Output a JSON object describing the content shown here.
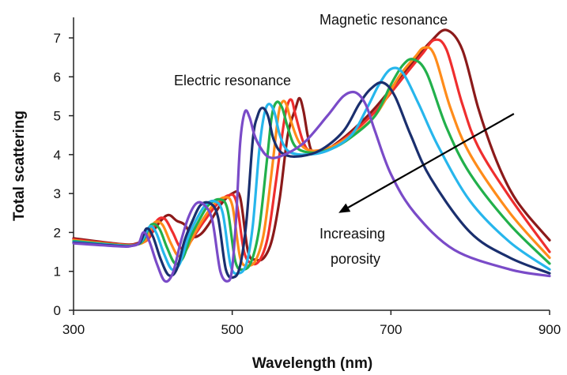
{
  "chart_data": {
    "type": "line",
    "title": "",
    "xlabel": "Wavelength (nm)",
    "ylabel": "Total scattering",
    "xlim": [
      300,
      900
    ],
    "ylim": [
      0,
      7.3
    ],
    "xticks": [
      300,
      500,
      700,
      900
    ],
    "yticks": [
      0,
      1,
      2,
      3,
      4,
      5,
      6,
      7
    ],
    "grid": false,
    "legend": "none",
    "annotations": [
      {
        "text": "Magnetic resonance"
      },
      {
        "text": "Electric resonance"
      },
      {
        "text": "Increasing"
      },
      {
        "text": "porosity"
      }
    ],
    "arrow": {
      "from": [
        855,
        5.05
      ],
      "to": [
        634,
        2.5
      ]
    },
    "series": [
      {
        "color": "#8b1a1a",
        "x": [
          300,
          360,
          380,
          395,
          410,
          420,
          430,
          440,
          450,
          460,
          470,
          485,
          500,
          510,
          520,
          530,
          540,
          550,
          560,
          570,
          580,
          585,
          590,
          595,
          600,
          610,
          625,
          650,
          680,
          720,
          750,
          770,
          790,
          810,
          830,
          850,
          870,
          900
        ],
        "y": [
          1.85,
          1.7,
          1.72,
          1.9,
          2.3,
          2.45,
          2.3,
          2.2,
          1.9,
          1.95,
          2.2,
          2.7,
          3.0,
          2.9,
          1.5,
          1.3,
          1.35,
          1.8,
          2.9,
          4.5,
          5.2,
          5.45,
          5.1,
          4.5,
          4.1,
          4.05,
          4.2,
          4.6,
          5.2,
          6.2,
          6.9,
          7.2,
          6.7,
          5.2,
          4.0,
          3.1,
          2.5,
          1.8
        ]
      },
      {
        "color": "#ef2e2e",
        "x": [
          300,
          360,
          380,
          395,
          405,
          415,
          425,
          435,
          445,
          455,
          465,
          480,
          495,
          505,
          515,
          525,
          535,
          545,
          555,
          565,
          570,
          575,
          580,
          590,
          600,
          625,
          650,
          680,
          720,
          740,
          755,
          770,
          790,
          810,
          850,
          900
        ],
        "y": [
          1.82,
          1.69,
          1.7,
          1.85,
          2.3,
          2.35,
          2.0,
          1.6,
          1.7,
          2.0,
          2.3,
          2.7,
          2.95,
          2.8,
          1.5,
          1.2,
          1.3,
          1.9,
          3.3,
          4.8,
          5.3,
          5.4,
          5.0,
          4.3,
          4.1,
          4.2,
          4.55,
          5.1,
          6.1,
          6.6,
          6.95,
          6.7,
          5.3,
          4.2,
          2.9,
          1.5
        ]
      },
      {
        "color": "#ff8c1a",
        "x": [
          300,
          360,
          380,
          392,
          402,
          412,
          422,
          432,
          442,
          452,
          462,
          476,
          490,
          500,
          510,
          520,
          530,
          540,
          550,
          558,
          563,
          568,
          575,
          585,
          600,
          625,
          650,
          680,
          710,
          730,
          742,
          755,
          775,
          800,
          850,
          900
        ],
        "y": [
          1.8,
          1.68,
          1.69,
          1.82,
          2.25,
          2.2,
          1.75,
          1.4,
          1.55,
          1.95,
          2.3,
          2.7,
          2.9,
          2.7,
          1.35,
          1.15,
          1.3,
          2.0,
          3.6,
          5.0,
          5.35,
          5.3,
          4.8,
          4.3,
          4.1,
          4.2,
          4.5,
          5.0,
          6.0,
          6.5,
          6.75,
          6.55,
          5.2,
          4.0,
          2.5,
          1.35
        ]
      },
      {
        "color": "#22b04b",
        "x": [
          300,
          360,
          378,
          388,
          398,
          408,
          418,
          428,
          438,
          448,
          458,
          470,
          484,
          494,
          504,
          514,
          524,
          534,
          544,
          550,
          556,
          563,
          570,
          580,
          600,
          625,
          650,
          680,
          700,
          715,
          728,
          745,
          770,
          800,
          850,
          900
        ],
        "y": [
          1.78,
          1.67,
          1.68,
          1.8,
          2.2,
          2.1,
          1.6,
          1.2,
          1.35,
          1.9,
          2.3,
          2.7,
          2.85,
          2.6,
          1.25,
          1.05,
          1.25,
          2.1,
          3.9,
          5.0,
          5.35,
          5.2,
          4.7,
          4.2,
          4.05,
          4.15,
          4.45,
          5.0,
          5.8,
          6.3,
          6.45,
          6.1,
          4.7,
          3.5,
          2.2,
          1.2
        ]
      },
      {
        "color": "#27b6ec",
        "x": [
          300,
          360,
          376,
          386,
          396,
          404,
          414,
          424,
          434,
          444,
          454,
          466,
          478,
          488,
          498,
          508,
          518,
          526,
          534,
          540,
          546,
          553,
          560,
          570,
          590,
          620,
          650,
          670,
          685,
          700,
          715,
          735,
          760,
          800,
          850,
          900
        ],
        "y": [
          1.76,
          1.66,
          1.67,
          1.78,
          2.15,
          2.0,
          1.45,
          1.05,
          1.2,
          1.85,
          2.3,
          2.7,
          2.8,
          2.5,
          1.15,
          0.95,
          1.2,
          2.2,
          4.1,
          5.0,
          5.3,
          5.1,
          4.5,
          4.1,
          4.0,
          4.1,
          4.5,
          5.2,
          5.8,
          6.2,
          6.1,
          5.3,
          4.2,
          2.8,
          1.75,
          1.05
        ]
      },
      {
        "color": "#1a2f6e",
        "x": [
          300,
          360,
          374,
          384,
          392,
          400,
          410,
          420,
          430,
          440,
          450,
          460,
          472,
          482,
          492,
          502,
          510,
          518,
          526,
          532,
          538,
          545,
          552,
          562,
          580,
          610,
          640,
          660,
          675,
          690,
          705,
          725,
          750,
          800,
          850,
          900
        ],
        "y": [
          1.74,
          1.65,
          1.66,
          1.75,
          2.1,
          1.9,
          1.3,
          0.9,
          1.05,
          1.8,
          2.3,
          2.7,
          2.75,
          2.4,
          1.05,
          0.85,
          1.15,
          2.3,
          4.4,
          5.0,
          5.2,
          5.0,
          4.4,
          4.05,
          3.95,
          4.1,
          4.6,
          5.3,
          5.7,
          5.85,
          5.5,
          4.5,
          3.4,
          2.0,
          1.35,
          0.95
        ]
      },
      {
        "color": "#7a4bc8",
        "x": [
          300,
          360,
          372,
          382,
          388,
          395,
          405,
          415,
          425,
          435,
          445,
          455,
          465,
          475,
          485,
          495,
          500,
          505,
          510,
          516,
          522,
          528,
          535,
          545,
          560,
          590,
          620,
          640,
          655,
          668,
          680,
          700,
          730,
          780,
          850,
          900
        ],
        "y": [
          1.72,
          1.64,
          1.65,
          1.72,
          2.0,
          1.8,
          1.2,
          0.75,
          0.95,
          1.75,
          2.4,
          2.75,
          2.7,
          2.3,
          1.0,
          0.75,
          1.1,
          2.4,
          4.3,
          5.1,
          4.95,
          4.5,
          4.2,
          3.95,
          3.95,
          4.3,
          5.0,
          5.5,
          5.6,
          5.3,
          4.6,
          3.5,
          2.5,
          1.55,
          1.05,
          0.88
        ]
      }
    ]
  }
}
